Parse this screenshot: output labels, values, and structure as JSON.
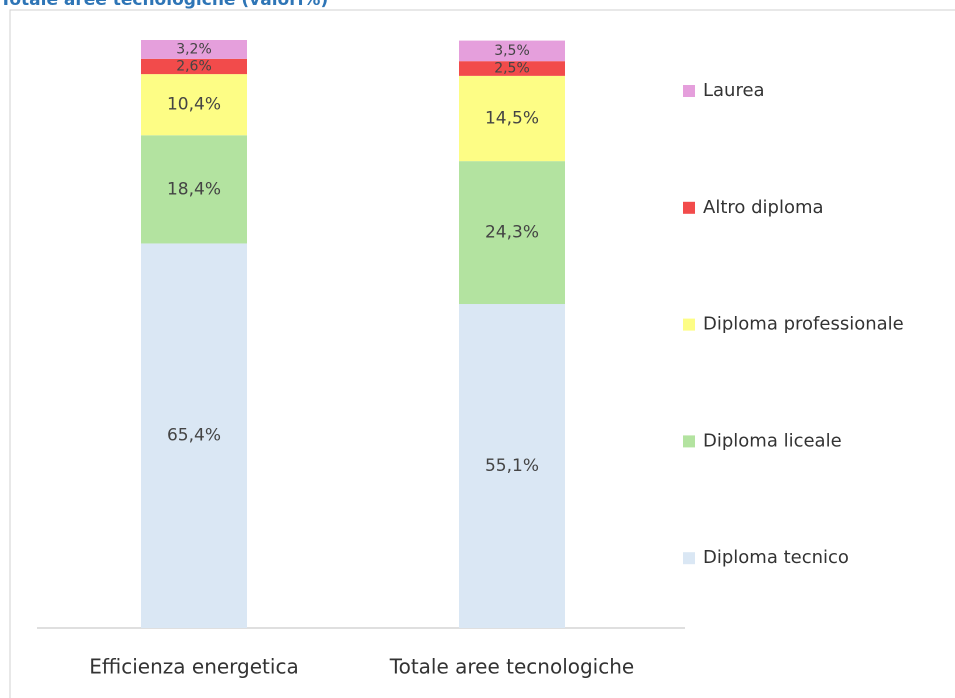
{
  "chart_data": {
    "type": "stacked_bar",
    "title": "Totale aree tecnologiche (valori%)",
    "categories": [
      "Efficienza energetica",
      "Totale aree tecnologiche"
    ],
    "series": [
      {
        "name": "Diploma tecnico",
        "color": "#dae7f4",
        "values": [
          65.4,
          55.1
        ],
        "value_labels": [
          "65,4%",
          "55,1%"
        ]
      },
      {
        "name": "Diploma liceale",
        "color": "#b3e3a0",
        "values": [
          18.4,
          24.3
        ],
        "value_labels": [
          "18,4%",
          "24,3%"
        ]
      },
      {
        "name": "Diploma professionale",
        "color": "#fdfd85",
        "values": [
          10.4,
          14.5
        ],
        "value_labels": [
          "10,4%",
          "14,5%"
        ]
      },
      {
        "name": "Altro diploma",
        "color": "#f24b4b",
        "values": [
          2.6,
          2.5
        ],
        "value_labels": [
          "2,6%",
          "2,5%"
        ]
      },
      {
        "name": "Laurea",
        "color": "#e59fdc",
        "values": [
          3.2,
          3.5
        ],
        "value_labels": [
          "3,2%",
          "3,5%"
        ]
      }
    ],
    "ylim": [
      0,
      100
    ],
    "legend": "right"
  }
}
